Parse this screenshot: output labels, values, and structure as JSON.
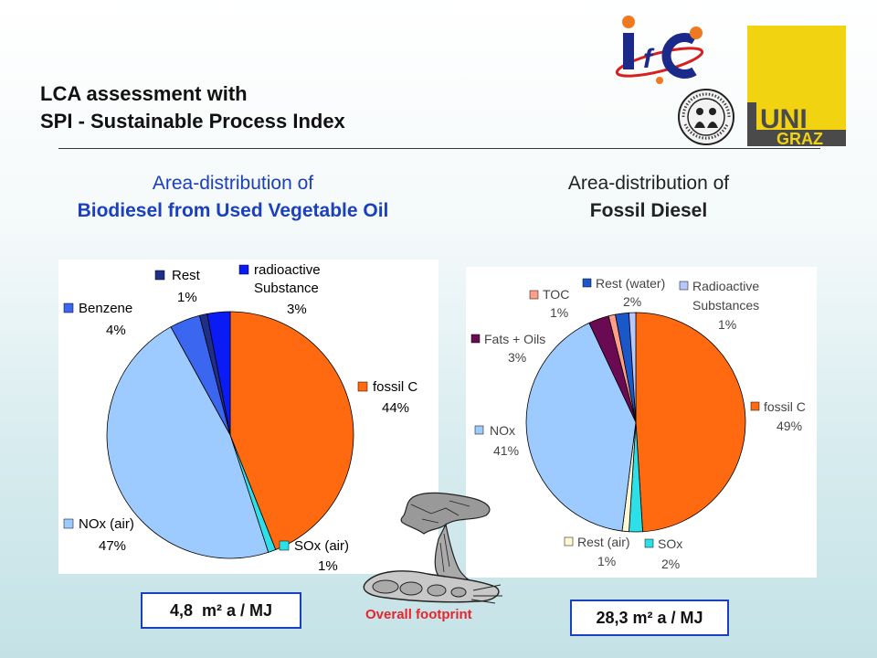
{
  "slide": {
    "title_line1": "LCA assessment with",
    "title_line2": "SPI - Sustainable Process Index",
    "footprint_caption": "Overall footprint"
  },
  "logos": {
    "ifc": "IfC",
    "uni_line1": "UNI",
    "uni_line2": "GRAZ",
    "seal_text": "UMWELTSYSTEMWISSENSCHAFTEN · UNIVERSITÄT GRAZ"
  },
  "colors": {
    "title_blue": "#1a3fbf",
    "fossil_c": "#ff6a10",
    "nox": "#9ecbff",
    "sox": "#2de0e8",
    "rest_air": "#fff8d0",
    "fats_oils": "#6a0a52",
    "toc": "#ff9f8a",
    "rest_water": "#1a57c8",
    "radioactive_light": "#b8c8ff",
    "benzene": "#3a66f0",
    "rest_dark": "#1e2f88",
    "radioactive_dark": "#0a1bf5",
    "footprint_caption": "#e8242c"
  },
  "chart_data": [
    {
      "type": "pie",
      "heading_line1": "Area-distribution of",
      "heading_line2": "Biodiesel from Used Vegetable Oil",
      "result": "4,8  m² a / MJ",
      "slices": [
        {
          "label": "fossil C",
          "pct_label": "44%",
          "value": 44,
          "color": "#ff6a10"
        },
        {
          "label": "SOx (air)",
          "pct_label": "1%",
          "value": 1,
          "color": "#2de0e8"
        },
        {
          "label": "NOx (air)",
          "pct_label": "47%",
          "value": 47,
          "color": "#9ecbff"
        },
        {
          "label": "Benzene",
          "pct_label": "4%",
          "value": 4,
          "color": "#3a66f0"
        },
        {
          "label": "Rest",
          "pct_label": "1%",
          "value": 1,
          "color": "#1e2f88"
        },
        {
          "label": "radioactive Substance",
          "label_line1": "radioactive",
          "label_line2": "Substance",
          "pct_label": "3%",
          "value": 3,
          "color": "#0a1bf5"
        }
      ]
    },
    {
      "type": "pie",
      "heading_line1": "Area-distribution of",
      "heading_line2": "Fossil Diesel",
      "result": "28,3 m² a / MJ",
      "slices": [
        {
          "label": "fossil C",
          "pct_label": "49%",
          "value": 49,
          "color": "#ff6a10"
        },
        {
          "label": "SOx",
          "pct_label": "2%",
          "value": 2,
          "color": "#2de0e8"
        },
        {
          "label": "Rest (air)",
          "pct_label": "1%",
          "value": 1,
          "color": "#fff8d0"
        },
        {
          "label": "NOx",
          "pct_label": "41%",
          "value": 41,
          "color": "#9ecbff"
        },
        {
          "label": "Fats + Oils",
          "pct_label": "3%",
          "value": 3,
          "color": "#6a0a52"
        },
        {
          "label": "TOC",
          "pct_label": "1%",
          "value": 1,
          "color": "#ff9f8a"
        },
        {
          "label": "Rest (water)",
          "pct_label": "2%",
          "value": 2,
          "color": "#1a57c8"
        },
        {
          "label": "Radioactive Substances",
          "label_line1": "Radioactive",
          "label_line2": "Substances",
          "pct_label": "1%",
          "value": 1,
          "color": "#b8c8ff"
        }
      ]
    }
  ]
}
